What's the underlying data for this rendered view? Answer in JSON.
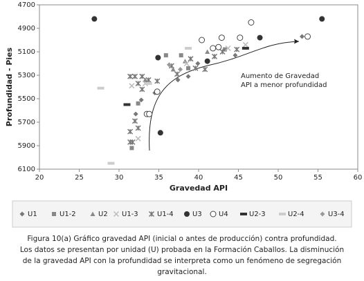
{
  "chart_data": {
    "type": "scatter",
    "xlabel": "Gravedad API",
    "ylabel": "Profundidad - Pies",
    "xlim": [
      20,
      60
    ],
    "xticks": [
      20,
      25,
      30,
      35,
      40,
      45,
      50,
      55,
      60
    ],
    "ylim": [
      4700,
      6100
    ],
    "yticks": [
      4700,
      4900,
      5100,
      5300,
      5500,
      5700,
      5900,
      6100
    ],
    "y_inverted": true,
    "annotation": [
      "Aumento de Gravedad",
      "API a menor profundidad"
    ],
    "series": [
      {
        "name": "U1",
        "marker": "diamond",
        "color": "#777777",
        "x": [
          53.0,
          38.7,
          39.9,
          37.4,
          34.5,
          32.1,
          32.8,
          44.6
        ],
        "y": [
          4970,
          5310,
          5200,
          5340,
          5450,
          5630,
          5510,
          5130
        ]
      },
      {
        "name": "U1-2",
        "marker": "square",
        "color": "#888888",
        "x": [
          37.8,
          43.3,
          38.7,
          35.9,
          31.6,
          32.4
        ],
        "y": [
          5130,
          5080,
          5240,
          5130,
          5920,
          5540
        ]
      },
      {
        "name": "U2",
        "marker": "triangle",
        "color": "#888888",
        "x": [
          33.3,
          36.8,
          38.3,
          41.1
        ],
        "y": [
          5340,
          5250,
          5180,
          5100
        ]
      },
      {
        "name": "U1-3",
        "marker": "x",
        "color": "#bbbbbb",
        "x": [
          31.6,
          33.3,
          38.5,
          45.9,
          43.7,
          32.4
        ],
        "y": [
          5390,
          5370,
          5200,
          5040,
          5070,
          5840
        ]
      },
      {
        "name": "U1-4",
        "marker": "asterisk",
        "color": "#777777",
        "x": [
          31.4,
          32.0,
          32.9,
          33.7,
          34.8,
          31.4,
          31.7,
          31.4,
          32.0,
          32.4,
          32.9,
          36.6,
          39.0,
          39.6,
          37.3,
          42.0,
          43.0,
          44.8,
          40.8,
          32.4
        ],
        "y": [
          5310,
          5310,
          5310,
          5340,
          5350,
          5780,
          5870,
          5870,
          5690,
          5750,
          5420,
          5220,
          5160,
          5240,
          5290,
          5140,
          5100,
          5080,
          5250,
          5370
        ]
      },
      {
        "name": "U3",
        "marker": "circle",
        "color": "#333333",
        "x": [
          26.9,
          55.5,
          34.9,
          47.7,
          35.2,
          41.1
        ],
        "y": [
          4820,
          4820,
          5150,
          4980,
          5790,
          5180
        ]
      },
      {
        "name": "U4",
        "marker": "open-circle",
        "color": "#444444",
        "x": [
          46.6,
          53.7,
          40.4,
          42.9,
          45.2,
          42.5,
          41.8,
          34.8,
          33.5,
          33.8
        ],
        "y": [
          4850,
          4970,
          5000,
          4980,
          4980,
          5060,
          5070,
          5440,
          5630,
          5630
        ]
      },
      {
        "name": "U2-3",
        "marker": "dash",
        "color": "#333333",
        "x": [
          31.0,
          45.9
        ],
        "y": [
          5550,
          5070
        ]
      },
      {
        "name": "U2-4",
        "marker": "dash",
        "color": "#cccccc",
        "x": [
          27.7,
          29.0,
          38.7,
          33.7
        ],
        "y": [
          5410,
          6050,
          5070,
          5370
        ]
      },
      {
        "name": "U3-4",
        "marker": "diamond",
        "color": "#999999",
        "x": [
          36.3,
          37.7
        ],
        "y": [
          5210,
          5250
        ]
      }
    ]
  },
  "caption": [
    "Figura 10(a) Gráfico gravedad API (inicial o antes de producción)  contra profundidad.",
    "Los datos se presentan por unidad (U) probada en la Formación Caballos. La disminución",
    "de la gravedad API con la profundidad se interpreta como un fenómeno de segregación",
    "gravitacional."
  ]
}
